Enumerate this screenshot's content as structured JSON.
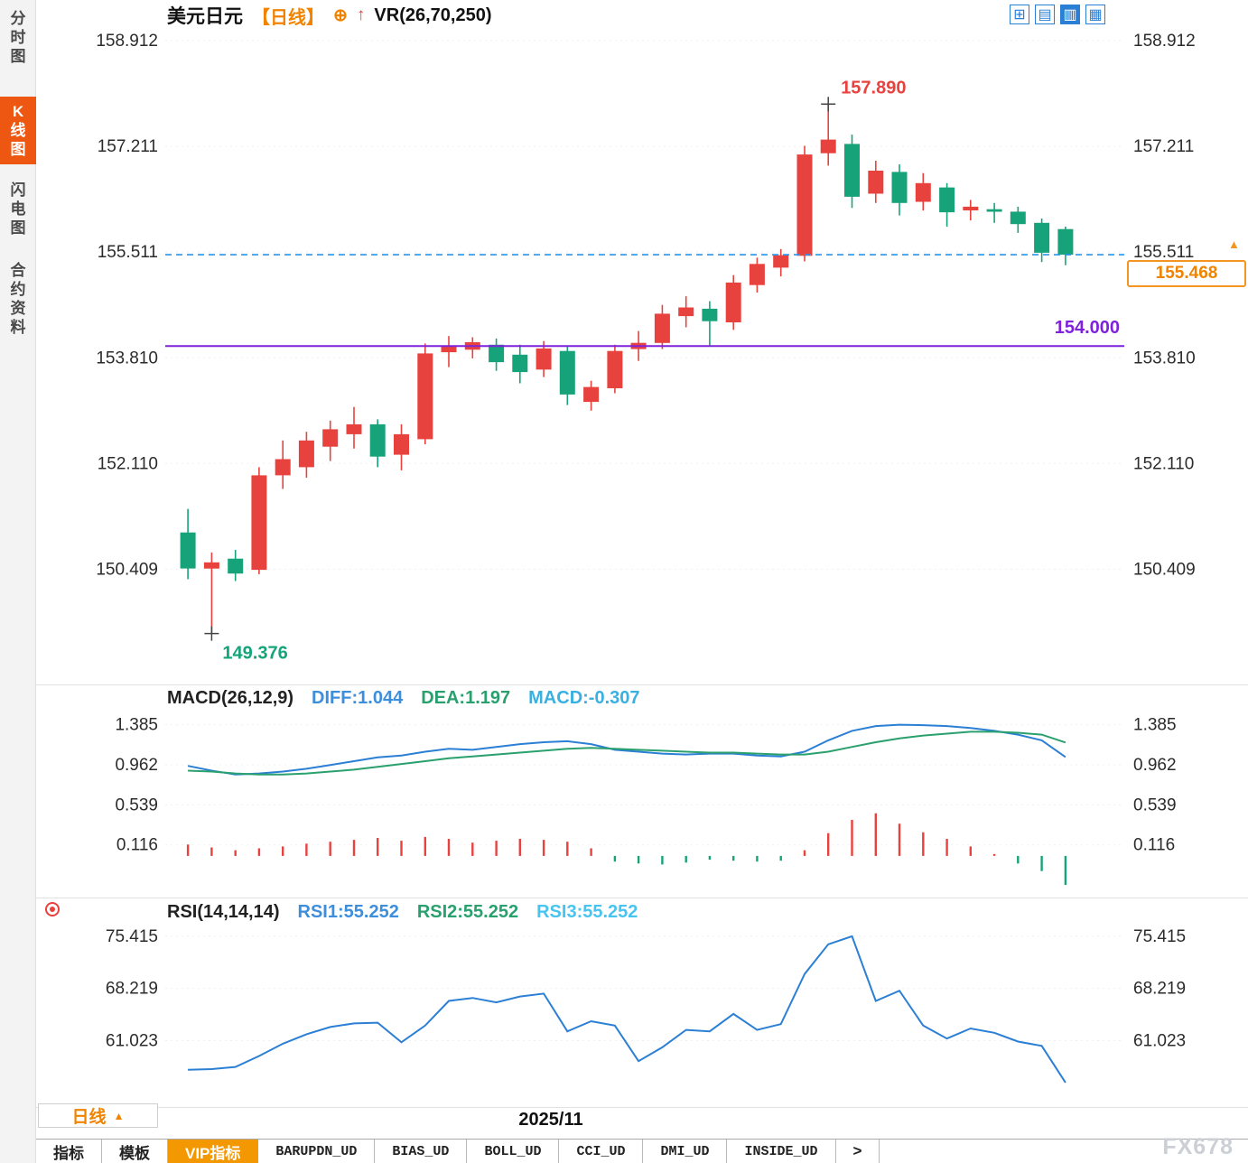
{
  "header": {
    "symbol": "美元日元",
    "period_tag": "【日线】",
    "add_icon": "⊕",
    "arrow_icon": "↑",
    "indicator": "VR(26,70,250)",
    "layout_buttons": [
      {
        "id": "grid",
        "glyph": "⊞",
        "active": false
      },
      {
        "id": "rows",
        "glyph": "▤",
        "active": false
      },
      {
        "id": "single",
        "glyph": "▥",
        "active": true
      },
      {
        "id": "columns",
        "glyph": "▦",
        "active": false
      }
    ]
  },
  "sidebar": {
    "items": [
      {
        "id": "time-share-chart",
        "label": "分时图",
        "active": false
      },
      {
        "id": "kline-chart",
        "label": "K线图",
        "active": true
      },
      {
        "id": "flash-chart",
        "label": "闪电图",
        "active": false
      },
      {
        "id": "contract-info",
        "label": "合约资料",
        "active": false
      }
    ]
  },
  "price_panel": {
    "last_price_label": "155.468",
    "marker_glyph": "▲",
    "level_label": "154.000"
  },
  "macd_panel": {
    "title": "MACD(26,12,9)",
    "diff": "DIFF:1.044",
    "dea": "DEA:1.197",
    "macd": "MACD:-0.307"
  },
  "rsi_panel": {
    "title": "RSI(14,14,14)",
    "rsi1": "RSI1:55.252",
    "rsi2": "RSI2:55.252",
    "rsi3": "RSI3:55.252"
  },
  "xaxis": {
    "date_label": "2025/11",
    "period_button": "日线",
    "period_arrow": "▲"
  },
  "tabs": [
    {
      "id": "indicators",
      "label": "指标"
    },
    {
      "id": "templates",
      "label": "模板"
    },
    {
      "id": "vip-indicators",
      "label": "VIP指标",
      "active": true
    },
    {
      "id": "barupdn-ud",
      "label": "BARUPDN_UD",
      "mono": true
    },
    {
      "id": "bias-ud",
      "label": "BIAS_UD",
      "mono": true
    },
    {
      "id": "boll-ud",
      "label": "BOLL_UD",
      "mono": true
    },
    {
      "id": "cci-ud",
      "label": "CCI_UD",
      "mono": true
    },
    {
      "id": "dmi-ud",
      "label": "DMI_UD",
      "mono": true
    },
    {
      "id": "inside-ud",
      "label": "INSIDE_UD",
      "mono": true
    },
    {
      "id": "more",
      "label": ">"
    }
  ],
  "watermark": "FX678",
  "colors": {
    "up": "#e8423e",
    "down": "#17a37a",
    "accent_orange": "#f08300",
    "line_blue": "#2b7fd4",
    "line_green": "#2aa06e",
    "dashed_blue": "#2196f3",
    "level_purple": "#7e22dc"
  },
  "chart_data": [
    {
      "type": "candlestick",
      "title": "美元日元 日线",
      "ylim": [
        148.6,
        159.1
      ],
      "yticks": [
        "158.912",
        "157.211",
        "155.511",
        "153.810",
        "152.110",
        "150.409"
      ],
      "xticks": [
        {
          "label": "2025/11",
          "position": 0.4
        }
      ],
      "up_color": "#e8423e",
      "down_color": "#17a37a",
      "candles": [
        [
          151.0,
          151.38,
          150.25,
          150.42
        ],
        [
          150.42,
          150.68,
          149.376,
          150.52
        ],
        [
          150.58,
          150.72,
          150.22,
          150.34
        ],
        [
          150.4,
          152.05,
          150.33,
          151.92
        ],
        [
          151.92,
          152.48,
          151.7,
          152.18
        ],
        [
          152.05,
          152.62,
          151.88,
          152.48
        ],
        [
          152.38,
          152.8,
          152.15,
          152.66
        ],
        [
          152.58,
          153.02,
          152.35,
          152.74
        ],
        [
          152.74,
          152.82,
          152.05,
          152.22
        ],
        [
          152.25,
          152.74,
          152.0,
          152.58
        ],
        [
          152.5,
          154.04,
          152.42,
          153.88
        ],
        [
          153.9,
          154.16,
          153.66,
          154.0
        ],
        [
          153.94,
          154.14,
          153.8,
          154.06
        ],
        [
          154.02,
          154.12,
          153.6,
          153.74
        ],
        [
          153.86,
          154.02,
          153.4,
          153.58
        ],
        [
          153.62,
          154.08,
          153.5,
          153.96
        ],
        [
          153.92,
          154.0,
          153.05,
          153.22
        ],
        [
          153.1,
          153.44,
          152.96,
          153.34
        ],
        [
          153.32,
          154.02,
          153.24,
          153.92
        ],
        [
          153.95,
          154.24,
          153.76,
          154.05
        ],
        [
          154.05,
          154.66,
          153.95,
          154.52
        ],
        [
          154.48,
          154.8,
          154.3,
          154.62
        ],
        [
          154.6,
          154.72,
          154.0,
          154.4
        ],
        [
          154.38,
          155.14,
          154.26,
          155.02
        ],
        [
          154.98,
          155.42,
          154.86,
          155.32
        ],
        [
          155.26,
          155.56,
          155.12,
          155.46
        ],
        [
          155.45,
          157.22,
          155.36,
          157.08
        ],
        [
          157.1,
          157.89,
          156.9,
          157.32
        ],
        [
          157.25,
          157.4,
          156.22,
          156.4
        ],
        [
          156.45,
          156.98,
          156.3,
          156.82
        ],
        [
          156.8,
          156.92,
          156.1,
          156.3
        ],
        [
          156.32,
          156.78,
          156.18,
          156.62
        ],
        [
          156.55,
          156.62,
          155.92,
          156.15
        ],
        [
          156.18,
          156.35,
          156.02,
          156.24
        ],
        [
          156.2,
          156.3,
          155.98,
          156.16
        ],
        [
          156.16,
          156.24,
          155.82,
          155.96
        ],
        [
          155.98,
          156.05,
          155.35,
          155.5
        ],
        [
          155.88,
          155.92,
          155.3,
          155.468
        ]
      ],
      "annotations": {
        "high": {
          "label": "157.890",
          "value": 157.89,
          "index": 27
        },
        "low": {
          "label": "149.376",
          "value": 149.376,
          "index": 1
        }
      },
      "lines": {
        "last_price": {
          "value": 155.468,
          "label": "155.468",
          "style": "dashed",
          "color": "#2196f3"
        },
        "level": {
          "value": 154.0,
          "label": "154.000",
          "style": "solid",
          "color": "#7e22dc"
        }
      }
    },
    {
      "type": "bar",
      "name": "MACD(26,12,9)",
      "ylim": [
        -0.42,
        1.6
      ],
      "yticks": [
        "1.385",
        "0.962",
        "0.539",
        "0.116"
      ],
      "series": [
        {
          "name": "DIFF",
          "color": "#2b7fd4",
          "values": [
            0.95,
            0.9,
            0.86,
            0.87,
            0.89,
            0.92,
            0.96,
            1.0,
            1.04,
            1.06,
            1.1,
            1.13,
            1.12,
            1.15,
            1.18,
            1.2,
            1.21,
            1.18,
            1.12,
            1.1,
            1.08,
            1.07,
            1.08,
            1.08,
            1.06,
            1.05,
            1.1,
            1.22,
            1.32,
            1.37,
            1.385,
            1.38,
            1.37,
            1.35,
            1.32,
            1.28,
            1.22,
            1.044
          ]
        },
        {
          "name": "DEA",
          "color": "#2aa06e",
          "values": [
            0.9,
            0.89,
            0.87,
            0.86,
            0.86,
            0.87,
            0.89,
            0.91,
            0.94,
            0.97,
            1.0,
            1.03,
            1.05,
            1.07,
            1.09,
            1.11,
            1.13,
            1.14,
            1.13,
            1.12,
            1.11,
            1.1,
            1.09,
            1.09,
            1.08,
            1.07,
            1.07,
            1.1,
            1.15,
            1.2,
            1.24,
            1.27,
            1.29,
            1.31,
            1.31,
            1.3,
            1.28,
            1.197
          ]
        }
      ],
      "histogram": {
        "up_color": "#e8423e",
        "down_color": "#17a37a",
        "values": [
          0.12,
          0.09,
          0.06,
          0.08,
          0.1,
          0.13,
          0.15,
          0.17,
          0.19,
          0.16,
          0.2,
          0.18,
          0.14,
          0.16,
          0.18,
          0.17,
          0.15,
          0.08,
          -0.06,
          -0.08,
          -0.09,
          -0.07,
          -0.04,
          -0.05,
          -0.06,
          -0.05,
          0.06,
          0.24,
          0.38,
          0.45,
          0.34,
          0.25,
          0.18,
          0.1,
          0.02,
          -0.08,
          -0.16,
          -0.307
        ]
      }
    },
    {
      "type": "line",
      "name": "RSI(14,14,14)",
      "ylim": [
        52.0,
        78.5
      ],
      "yticks": [
        "75.415",
        "68.219",
        "61.023"
      ],
      "color": "#2b7fd4",
      "series_labels": [
        "RSI1:55.252",
        "RSI2:55.252",
        "RSI3:55.252"
      ],
      "values": [
        57.0,
        57.1,
        57.4,
        58.9,
        60.6,
        61.9,
        62.9,
        63.4,
        63.5,
        60.8,
        63.1,
        66.5,
        66.9,
        66.3,
        67.1,
        67.5,
        62.3,
        63.7,
        63.1,
        58.2,
        60.1,
        62.5,
        62.3,
        64.7,
        62.5,
        63.3,
        70.2,
        74.3,
        75.4,
        66.5,
        67.9,
        63.1,
        61.3,
        62.7,
        62.1,
        60.9,
        60.3,
        55.252
      ]
    }
  ]
}
